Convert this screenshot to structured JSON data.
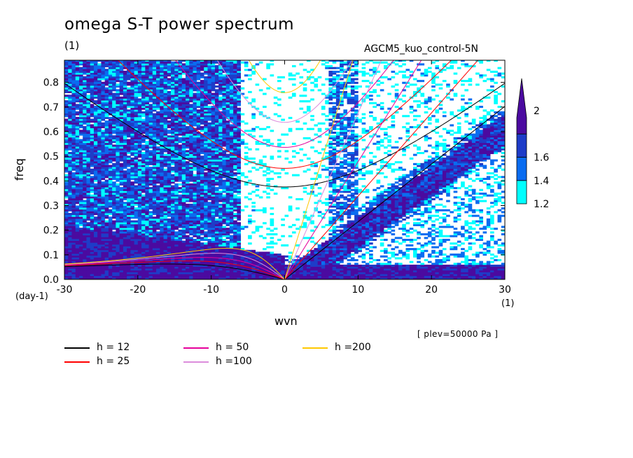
{
  "figure": {
    "title": "omega S-T power spectrum",
    "title_unit": "(1)",
    "run_name": "AGCM5_kuo_control-5N",
    "plev": "[ plev=50000 Pa ]"
  },
  "colors": {
    "background": "#ffffff",
    "level_1_2_to_1_4": "#00ffff",
    "level_1_4_to_1_6": "#0a6cf0",
    "level_1_6_to_2": "#1e3cc8",
    "level_above_2": "#4b0aa0"
  },
  "chart_data": {
    "type": "heatmap",
    "title": "omega S-T power spectrum",
    "xlabel": "wvn",
    "ylabel": "freq",
    "x_unit": "(1)",
    "y_unit": "(day-1)",
    "xlim": [
      -30,
      30
    ],
    "ylim": [
      0,
      0.89
    ],
    "x_ticks": [
      -30,
      -20,
      -10,
      0,
      10,
      20,
      30
    ],
    "y_ticks": [
      0.0,
      0.1,
      0.2,
      0.3,
      0.4,
      0.5,
      0.6,
      0.7,
      0.8
    ],
    "x_tick_labels": [
      "-30",
      "-20",
      "-10",
      "0",
      "10",
      "20",
      "30"
    ],
    "y_tick_labels": [
      "0.0",
      "0.1",
      "0.2",
      "0.3",
      "0.4",
      "0.5",
      "0.6",
      "0.7",
      "0.8"
    ],
    "colorbar": {
      "levels": [
        1.2,
        1.4,
        1.6,
        2
      ],
      "labels": [
        "1.2",
        "1.4",
        "1.6",
        "2"
      ],
      "colors": [
        "#00ffff",
        "#0a6cf0",
        "#1e3cc8",
        "#4b0aa0"
      ]
    },
    "dispersion_curves": [
      {
        "name": "h = 12",
        "h": 12,
        "color": "#000000"
      },
      {
        "name": "h = 25",
        "h": 25,
        "color": "#ff0000"
      },
      {
        "name": "h = 50",
        "h": 50,
        "color": "#e6009b"
      },
      {
        "name": "h =100",
        "h": 100,
        "color": "#dc8cdc"
      },
      {
        "name": "h =200",
        "h": 200,
        "color": "#ffc800"
      }
    ]
  }
}
